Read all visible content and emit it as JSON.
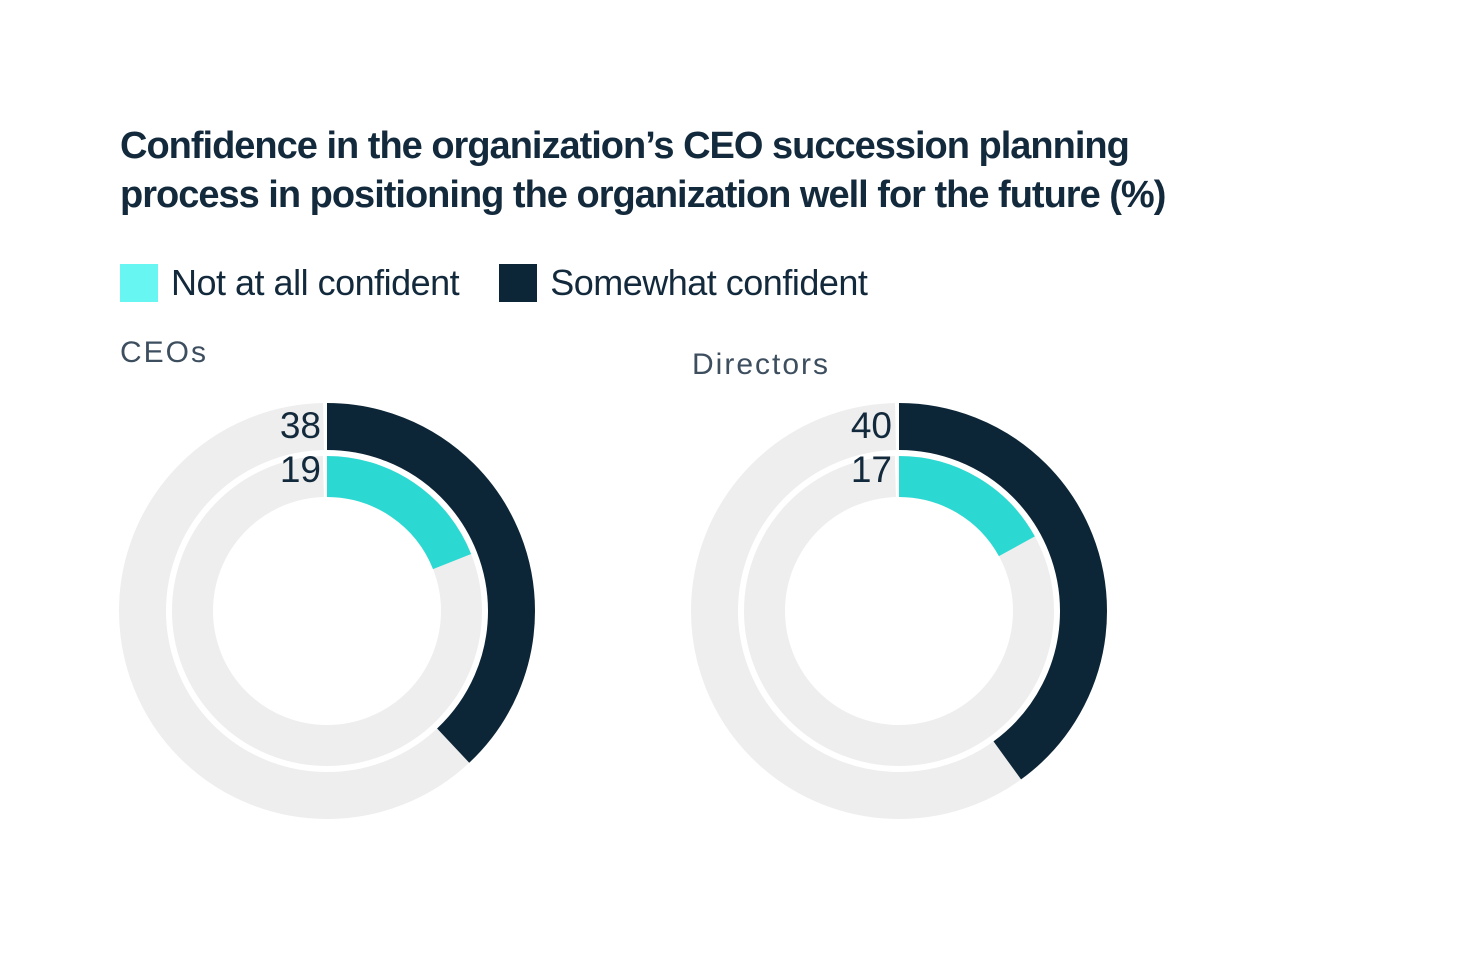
{
  "title": {
    "lines": [
      "Confidence in the organization’s CEO succession planning",
      "process in positioning the organization well for the future (%)"
    ]
  },
  "legend": {
    "items": [
      {
        "label": "Not at all confident",
        "swatch_color": "#68F6F3"
      },
      {
        "label": "Somewhat confident",
        "swatch_color": "#0D2637"
      }
    ]
  },
  "colors": {
    "navy": "#0D2637",
    "cyan": "#2BD9D2",
    "track_gray": "#EEEEEE",
    "text_navy": "#13293C",
    "group_label_gray": "#3D4E5F",
    "background": "#FFFFFF"
  },
  "chart_data": [
    {
      "type": "pie",
      "subtype": "concentric_donut",
      "group": "CEOs",
      "unit": "%",
      "start_angle_deg": 0,
      "direction": "clockwise",
      "rings": [
        {
          "position": "outer",
          "label": "Somewhat confident",
          "value": 38,
          "color": "#0D2637",
          "track_color": "#EEEEEE"
        },
        {
          "position": "inner",
          "label": "Not at all confident",
          "value": 19,
          "color": "#2BD9D2",
          "track_color": "#EEEEEE"
        }
      ]
    },
    {
      "type": "pie",
      "subtype": "concentric_donut",
      "group": "Directors",
      "unit": "%",
      "start_angle_deg": 0,
      "direction": "clockwise",
      "rings": [
        {
          "position": "outer",
          "label": "Somewhat confident",
          "value": 40,
          "color": "#0D2637",
          "track_color": "#EEEEEE"
        },
        {
          "position": "inner",
          "label": "Not at all confident",
          "value": 17,
          "color": "#2BD9D2",
          "track_color": "#EEEEEE"
        }
      ]
    }
  ]
}
